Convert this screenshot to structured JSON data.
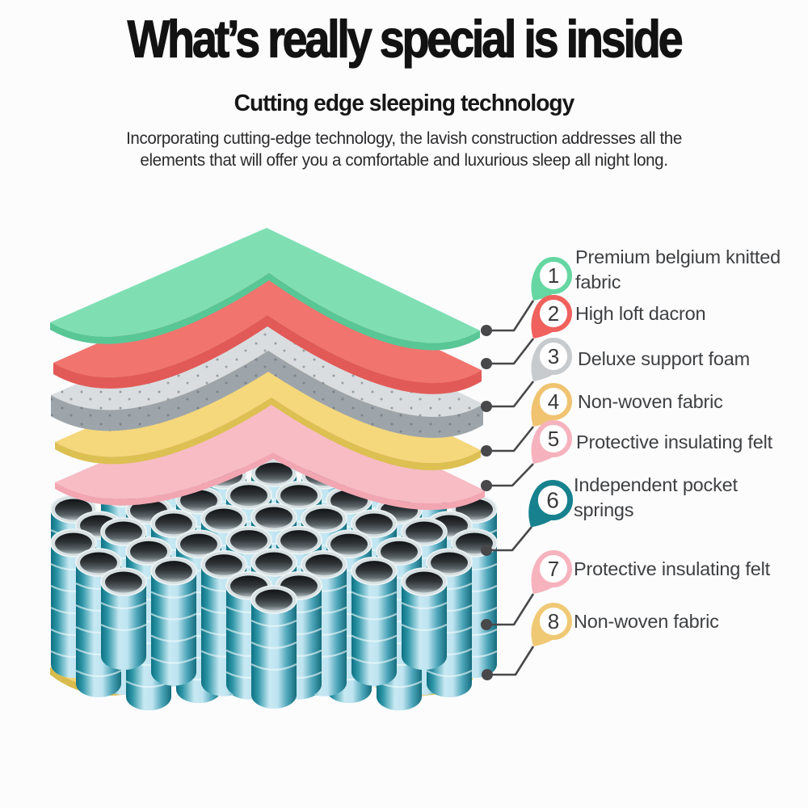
{
  "header": {
    "title": "What’s really special is inside",
    "subtitle": "Cutting edge sleeping technology",
    "description": "Incorporating cutting-edge technology, the lavish construction addresses all the elements that will offer you a comfortable and luxurious sleep all night long."
  },
  "diagram": {
    "leader_color": "#48484a",
    "layers": [
      {
        "name": "Premium belgium knitted fabric",
        "top_color": "#7fdfb3",
        "side_color": "#58c795"
      },
      {
        "name": "High loft dacron",
        "top_color": "#f1746f",
        "side_color": "#e25a57"
      },
      {
        "name": "Deluxe support foam",
        "top_color": "#d9dde0",
        "side_color": "#9da5aa"
      },
      {
        "name": "Non-woven fabric",
        "top_color": "#f5d77c",
        "side_color": "#ddc052"
      },
      {
        "name": "Protective insulating felt",
        "top_color": "#f7bcc4",
        "side_color": "#f2a6b2"
      },
      {
        "name": "Independent pocket springs",
        "spring_dark": "#0d7183",
        "spring_mid": "#2d95a6",
        "spring_light": "#c7e9f3"
      },
      {
        "name": "Protective insulating felt",
        "top_color": "#f7bcc4",
        "side_color": "#f2a6b2"
      },
      {
        "name": "Non-woven fabric",
        "top_color": "#f2d47a",
        "side_color": "#d9bb4e"
      }
    ],
    "callouts": [
      {
        "number": "1",
        "label": "Premium belgium knitted fabric",
        "color": "#66d7a2"
      },
      {
        "number": "2",
        "label": "High loft dacron",
        "color": "#f0615d"
      },
      {
        "number": "3",
        "label": "Deluxe support foam",
        "color": "#c8cbcd"
      },
      {
        "number": "4",
        "label": "Non-woven fabric",
        "color": "#f0c370"
      },
      {
        "number": "5",
        "label": "Protective insulating felt",
        "color": "#f6b3bd"
      },
      {
        "number": "6",
        "label": "Independent pocket springs",
        "color": "#17818e"
      },
      {
        "number": "7",
        "label": "Protective insulating felt",
        "color": "#f6b3bd"
      },
      {
        "number": "8",
        "label": "Non-woven fabric",
        "color": "#f0c975"
      }
    ]
  },
  "colors": {
    "background": "#fcfcfd",
    "title_text": "#121212",
    "body_text": "#2c2c2e",
    "label_text": "#3e4042"
  }
}
